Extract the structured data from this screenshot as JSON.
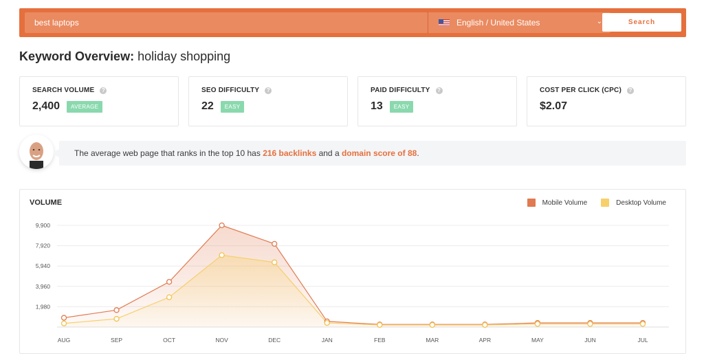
{
  "search": {
    "query": "best laptops",
    "language": "English / United States",
    "button_label": "Search"
  },
  "page": {
    "title_label": "Keyword Overview:",
    "keyword": "holiday shopping"
  },
  "metrics": [
    {
      "label": "SEARCH VOLUME",
      "value": "2,400",
      "badge": "AVERAGE"
    },
    {
      "label": "SEO DIFFICULTY",
      "value": "22",
      "badge": "EASY"
    },
    {
      "label": "PAID DIFFICULTY",
      "value": "13",
      "badge": "EASY"
    },
    {
      "label": "COST PER CLICK (CPC)",
      "value": "$2.07",
      "badge": ""
    }
  ],
  "tip": {
    "prefix": "The average web page that ranks in the top 10 has ",
    "backlinks": "216 backlinks",
    "middle": " and a ",
    "domain_score": "domain score of 88",
    "suffix": "."
  },
  "colors": {
    "accent": "#e5703d",
    "badge": "#8ad9ae",
    "mobile": "#e07a50",
    "desktop": "#f7cf6b"
  },
  "chart_data": {
    "type": "area",
    "title": "VOLUME",
    "categories": [
      "AUG",
      "SEP",
      "OCT",
      "NOV",
      "DEC",
      "JAN",
      "FEB",
      "MAR",
      "APR",
      "MAY",
      "JUN",
      "JUL"
    ],
    "series": [
      {
        "name": "Mobile Volume",
        "values": [
          900,
          1650,
          4400,
          9900,
          8100,
          550,
          250,
          250,
          250,
          400,
          400,
          400
        ]
      },
      {
        "name": "Desktop Volume",
        "values": [
          350,
          800,
          2900,
          7000,
          6300,
          400,
          200,
          200,
          200,
          300,
          300,
          300
        ]
      }
    ],
    "yticks": [
      "1,980",
      "3,960",
      "5,940",
      "7,920",
      "9,900"
    ],
    "ylim": [
      0,
      9900
    ],
    "grid": true,
    "legend_position": "top-right"
  }
}
